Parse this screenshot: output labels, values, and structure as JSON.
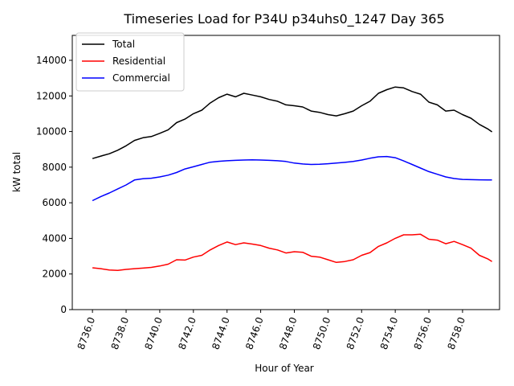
{
  "chart_data": {
    "type": "line",
    "title": "Timeseries Load for P34U p34uhs0_1247  Day 365",
    "xlabel": "Hour of Year",
    "ylabel": "kW total",
    "xlim": [
      8734.8,
      8760.2
    ],
    "ylim": [
      0,
      15400
    ],
    "xticks": [
      8736,
      8738,
      8740,
      8742,
      8744,
      8746,
      8748,
      8750,
      8752,
      8754,
      8756,
      8758
    ],
    "xtick_labels": [
      "8736.0",
      "8738.0",
      "8740.0",
      "8742.0",
      "8744.0",
      "8746.0",
      "8748.0",
      "8750.0",
      "8752.0",
      "8754.0",
      "8756.0",
      "8758.0"
    ],
    "yticks": [
      0,
      2000,
      4000,
      6000,
      8000,
      10000,
      12000,
      14000
    ],
    "ytick_labels": [
      "0",
      "2000",
      "4000",
      "6000",
      "8000",
      "10000",
      "12000",
      "14000"
    ],
    "grid": false,
    "legend_position": "upper left",
    "x": [
      8736.0,
      8736.5,
      8737.0,
      8737.5,
      8738.0,
      8738.5,
      8739.0,
      8739.5,
      8740.0,
      8740.5,
      8741.0,
      8741.5,
      8742.0,
      8742.5,
      8743.0,
      8743.5,
      8744.0,
      8744.5,
      8745.0,
      8745.5,
      8746.0,
      8746.5,
      8747.0,
      8747.5,
      8748.0,
      8748.5,
      8749.0,
      8749.5,
      8750.0,
      8750.5,
      8751.0,
      8751.5,
      8752.0,
      8752.5,
      8753.0,
      8753.5,
      8754.0,
      8754.5,
      8755.0,
      8755.5,
      8756.0,
      8756.5,
      8757.0,
      8757.5,
      8758.0,
      8758.5,
      8759.0,
      8759.5,
      8759.75
    ],
    "series": [
      {
        "name": "Total",
        "color": "#000000",
        "values": [
          8480,
          8620,
          8750,
          8950,
          9200,
          9500,
          9650,
          9720,
          9900,
          10100,
          10500,
          10700,
          11000,
          11200,
          11600,
          11900,
          12100,
          11950,
          12150,
          12050,
          11950,
          11800,
          11700,
          11500,
          11450,
          11380,
          11150,
          11080,
          10950,
          10880,
          11000,
          11150,
          11450,
          11700,
          12150,
          12350,
          12500,
          12450,
          12250,
          12100,
          11650,
          11500,
          11150,
          11200,
          10950,
          10750,
          10400,
          10150,
          9980
        ]
      },
      {
        "name": "Residential",
        "color": "#ff0000",
        "values": [
          2350,
          2300,
          2220,
          2200,
          2260,
          2300,
          2330,
          2370,
          2450,
          2550,
          2800,
          2780,
          2950,
          3050,
          3350,
          3600,
          3800,
          3650,
          3750,
          3680,
          3600,
          3450,
          3350,
          3180,
          3250,
          3220,
          3000,
          2950,
          2800,
          2650,
          2700,
          2800,
          3050,
          3200,
          3550,
          3750,
          4000,
          4200,
          4200,
          4230,
          3950,
          3900,
          3700,
          3830,
          3650,
          3450,
          3050,
          2850,
          2700
        ]
      },
      {
        "name": "Commercial",
        "color": "#0000ff",
        "values": [
          6120,
          6350,
          6550,
          6780,
          7000,
          7280,
          7350,
          7380,
          7450,
          7550,
          7700,
          7900,
          8020,
          8150,
          8280,
          8330,
          8360,
          8380,
          8400,
          8410,
          8400,
          8380,
          8360,
          8320,
          8230,
          8180,
          8150,
          8160,
          8190,
          8230,
          8270,
          8320,
          8400,
          8500,
          8580,
          8600,
          8530,
          8350,
          8150,
          7950,
          7750,
          7600,
          7450,
          7360,
          7310,
          7300,
          7290,
          7280,
          7280
        ]
      }
    ]
  }
}
